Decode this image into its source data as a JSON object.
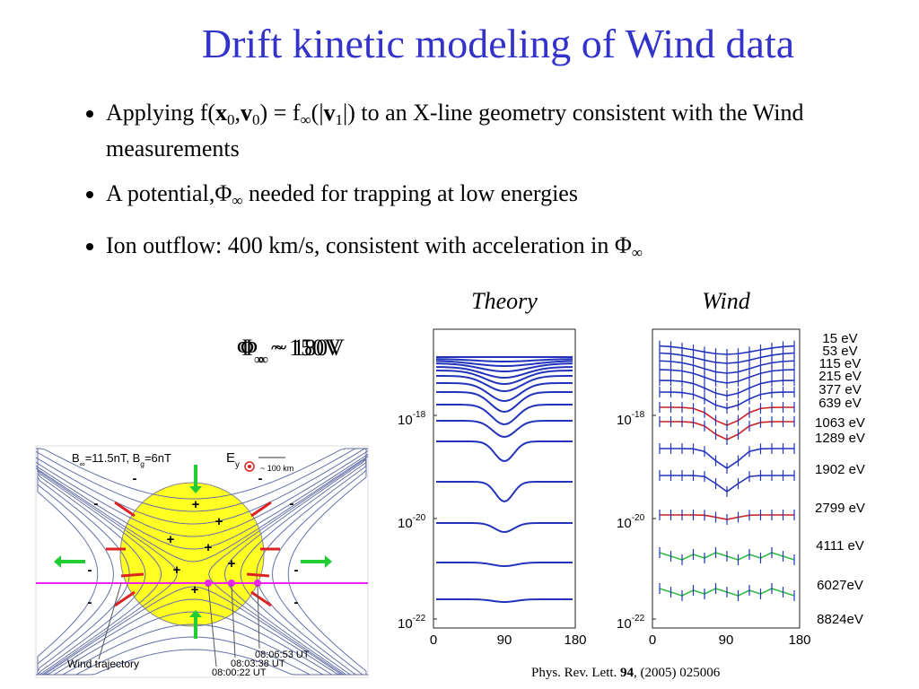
{
  "title": "Drift kinetic modeling of Wind data",
  "bullets": [
    [
      {
        "text": "Applying   f("
      },
      {
        "text": "x",
        "style": "b"
      },
      {
        "text": "0",
        "style": "sub"
      },
      {
        "text": ","
      },
      {
        "text": "v",
        "style": "b"
      },
      {
        "text": "0",
        "style": "sub"
      },
      {
        "text": ") = f"
      },
      {
        "text": "∞",
        "style": "sub"
      },
      {
        "text": "(|"
      },
      {
        "text": "v",
        "style": "b"
      },
      {
        "text": "1",
        "style": "sub"
      },
      {
        "text": "|) to an X-line geometry consistent with the Wind measurements"
      }
    ],
    [
      {
        "text": "A potential,Φ"
      },
      {
        "text": "∞",
        "style": "sub"
      },
      {
        "text": " needed for trapping at low energies"
      }
    ],
    [
      {
        "text": "Ion outflow: 400 km/s, consistent with acceleration in Φ"
      },
      {
        "text": "∞",
        "style": "sub"
      }
    ]
  ],
  "potential_labels": [
    [
      {
        "text": "Φ"
      },
      {
        "text": "∞",
        "style": "sub"
      },
      {
        "text": " ~ 150V"
      }
    ],
    [
      {
        "text": "Φ"
      },
      {
        "text": "∞",
        "style": "sub"
      },
      {
        "text": " ~ 180V"
      }
    ]
  ],
  "theory_panel": {
    "title": "Theory",
    "yticks": [
      {
        "base": "10",
        "exp": "-18"
      },
      {
        "base": "10",
        "exp": "-20"
      },
      {
        "base": "10",
        "exp": "-22"
      }
    ],
    "xticks": [
      "0",
      "90",
      "180"
    ]
  },
  "wind_panel": {
    "title": "Wind",
    "yticks": [
      {
        "base": "10",
        "exp": "-18"
      },
      {
        "base": "10",
        "exp": "-20"
      },
      {
        "base": "10",
        "exp": "-22"
      }
    ],
    "xticks": [
      "0",
      "90",
      "180"
    ],
    "energies": [
      "15 eV",
      "53 eV",
      "115 eV",
      "215 eV",
      "377 eV",
      "639 eV",
      "1063 eV",
      "1289 eV",
      "1902 eV",
      "2799 eV",
      "4111 eV",
      "6027eV",
      "8824eV"
    ]
  },
  "diagram": {
    "field_label": [
      {
        "text": "B"
      },
      {
        "text": "∞",
        "style": "sub"
      },
      {
        "text": "=11.5nT, B"
      },
      {
        "text": "g",
        "style": "sub"
      },
      {
        "text": "=6nT"
      }
    ],
    "efield_label": [
      {
        "text": "E"
      },
      {
        "text": "y",
        "style": "sub"
      }
    ],
    "scale_label": "~ 100 km",
    "trajectory_label": "Wind trajectory",
    "times": [
      "08:06:53 UT",
      "08:03:38 UT",
      "08:00:22 UT"
    ],
    "signs": [
      "+",
      "+",
      "+",
      "+",
      "+",
      "+",
      "+",
      "-",
      "-",
      "-",
      "-",
      "-",
      "-",
      "-",
      "-"
    ]
  },
  "citation": [
    {
      "text": "Phys. Rev. Lett. "
    },
    {
      "text": "94",
      "style": "b"
    },
    {
      "text": ", (2005)  025006"
    }
  ]
}
